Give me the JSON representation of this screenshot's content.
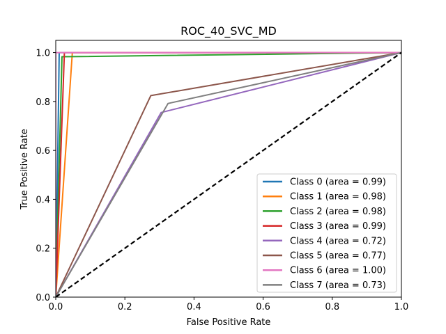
{
  "chart_data": {
    "type": "line",
    "title": "ROC_40_SVC_MD",
    "xlabel": "False Positive Rate",
    "ylabel": "True Positive Rate",
    "xlim": [
      0,
      1
    ],
    "ylim": [
      0,
      1.05
    ],
    "xticks": [
      0,
      0.2,
      0.4,
      0.6,
      0.8,
      1
    ],
    "xtick_labels": [
      "0.0",
      "0.2",
      "0.4",
      "0.6",
      "0.8",
      "1.0"
    ],
    "yticks": [
      0,
      0.2,
      0.4,
      0.6,
      0.8,
      1
    ],
    "ytick_labels": [
      "0.0",
      "0.2",
      "0.4",
      "0.6",
      "0.8",
      "1.0"
    ],
    "grid": false,
    "legend_position": "lower-right",
    "diagonal": {
      "x": [
        0,
        1
      ],
      "y": [
        0,
        1
      ],
      "color": "#000000",
      "style": "dashed"
    },
    "series": [
      {
        "name": "Class 0 (area = 0.99)",
        "color": "#1f77b4",
        "x": [
          0,
          0.01,
          1
        ],
        "y": [
          0,
          1.0,
          1
        ]
      },
      {
        "name": "Class 1 (area = 0.98)",
        "color": "#ff7f0e",
        "x": [
          0,
          0.048,
          1
        ],
        "y": [
          0,
          1.0,
          1
        ]
      },
      {
        "name": "Class 2 (area = 0.98)",
        "color": "#2ca02c",
        "x": [
          0,
          0.018,
          1
        ],
        "y": [
          0,
          0.983,
          1
        ]
      },
      {
        "name": "Class 3 (area = 0.99)",
        "color": "#d62728",
        "x": [
          0,
          0.025,
          1
        ],
        "y": [
          0,
          1.0,
          1
        ]
      },
      {
        "name": "Class 4 (area = 0.72)",
        "color": "#9467bd",
        "x": [
          0,
          0.305,
          1
        ],
        "y": [
          0,
          0.755,
          1
        ]
      },
      {
        "name": "Class 5 (area = 0.77)",
        "color": "#8c564b",
        "x": [
          0,
          0.275,
          1
        ],
        "y": [
          0,
          0.824,
          1
        ]
      },
      {
        "name": "Class 6 (area = 1.00)",
        "color": "#e377c2",
        "x": [
          0,
          0.0,
          1
        ],
        "y": [
          0,
          1.0,
          1
        ]
      },
      {
        "name": "Class 7 (area = 0.73)",
        "color": "#7f7f7f",
        "x": [
          0,
          0.325,
          1
        ],
        "y": [
          0,
          0.792,
          1
        ]
      }
    ]
  }
}
